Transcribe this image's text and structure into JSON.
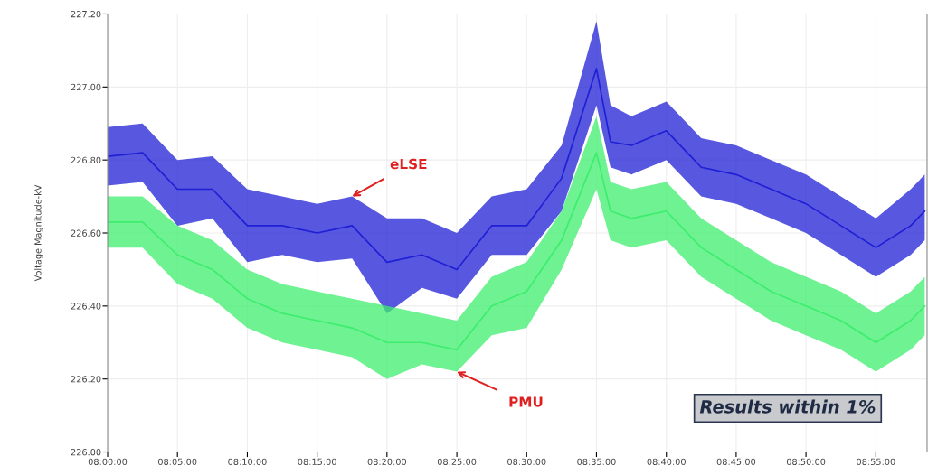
{
  "chart_data": {
    "type": "line",
    "ylabel": "Voltage Magnitude-kV",
    "x": [
      8.0,
      8.0417,
      8.0833,
      8.125,
      8.1667,
      8.2083,
      8.25,
      8.2917,
      8.3333,
      8.375,
      8.4167,
      8.4583,
      8.5,
      8.5417,
      8.5833,
      8.6,
      8.625,
      8.6667,
      8.7083,
      8.75,
      8.7917,
      8.8333,
      8.875,
      8.9167,
      8.9583,
      8.975
    ],
    "series": [
      {
        "color": "#1f1fd6",
        "values": [
          226.81,
          226.82,
          226.72,
          226.72,
          226.62,
          226.62,
          226.6,
          226.62,
          226.52,
          226.54,
          226.5,
          226.62,
          226.62,
          226.75,
          227.05,
          226.85,
          226.84,
          226.88,
          226.78,
          226.76,
          226.72,
          226.68,
          226.62,
          226.56,
          226.62,
          226.66
        ],
        "lower": [
          226.73,
          226.74,
          226.62,
          226.64,
          226.52,
          226.54,
          226.52,
          226.53,
          226.38,
          226.45,
          226.42,
          226.54,
          226.54,
          226.66,
          226.95,
          226.78,
          226.76,
          226.8,
          226.7,
          226.68,
          226.64,
          226.6,
          226.54,
          226.48,
          226.54,
          226.58
        ],
        "upper": [
          226.89,
          226.9,
          226.8,
          226.81,
          226.72,
          226.7,
          226.68,
          226.7,
          226.64,
          226.64,
          226.6,
          226.7,
          226.72,
          226.84,
          227.18,
          226.95,
          226.92,
          226.96,
          226.86,
          226.84,
          226.8,
          226.76,
          226.7,
          226.64,
          226.72,
          226.76
        ]
      },
      {
        "color": "#3ded6e",
        "values": [
          226.63,
          226.63,
          226.54,
          226.5,
          226.42,
          226.38,
          226.36,
          226.34,
          226.3,
          226.3,
          226.28,
          226.4,
          226.44,
          226.58,
          226.82,
          226.66,
          226.64,
          226.66,
          226.56,
          226.5,
          226.44,
          226.4,
          226.36,
          226.3,
          226.36,
          226.4
        ],
        "lower": [
          226.56,
          226.56,
          226.46,
          226.42,
          226.34,
          226.3,
          226.28,
          226.26,
          226.2,
          226.24,
          226.22,
          226.32,
          226.34,
          226.5,
          226.72,
          226.58,
          226.56,
          226.58,
          226.48,
          226.42,
          226.36,
          226.32,
          226.28,
          226.22,
          226.28,
          226.32
        ],
        "upper": [
          226.7,
          226.7,
          226.62,
          226.58,
          226.5,
          226.46,
          226.44,
          226.42,
          226.4,
          226.38,
          226.36,
          226.48,
          226.52,
          226.66,
          226.92,
          226.74,
          226.72,
          226.74,
          226.64,
          226.58,
          226.52,
          226.48,
          226.44,
          226.38,
          226.44,
          226.48
        ]
      }
    ],
    "xlim": [
      8.0,
      8.9778
    ],
    "ylim": [
      226.0,
      227.2
    ],
    "xticks": [
      {
        "value": 8.0,
        "label": "08:00:00"
      },
      {
        "value": 8.0833,
        "label": "08:05:00"
      },
      {
        "value": 8.1667,
        "label": "08:10:00"
      },
      {
        "value": 8.25,
        "label": "08:15:00"
      },
      {
        "value": 8.3333,
        "label": "08:20:00"
      },
      {
        "value": 8.4167,
        "label": "08:25:00"
      },
      {
        "value": 8.5,
        "label": "08:30:00"
      },
      {
        "value": 8.5833,
        "label": "08:35:00"
      },
      {
        "value": 8.6667,
        "label": "08:40:00"
      },
      {
        "value": 8.75,
        "label": "08:45:00"
      },
      {
        "value": 8.8333,
        "label": "08:50:00"
      },
      {
        "value": 8.9167,
        "label": "08:55:00"
      }
    ],
    "yticks": [
      {
        "value": 226.0,
        "label": "226.00"
      },
      {
        "value": 226.2,
        "label": "226.20"
      },
      {
        "value": 226.4,
        "label": "226.40"
      },
      {
        "value": 226.6,
        "label": "226.60"
      },
      {
        "value": 226.8,
        "label": "226.80"
      },
      {
        "value": 227.0,
        "label": "227.00"
      },
      {
        "value": 227.2,
        "label": "227.20"
      }
    ],
    "grid": true,
    "legend": false,
    "annotations": [
      {
        "text": "eLSE",
        "x": 8.2917,
        "y": 226.7
      },
      {
        "text": "PMU",
        "x": 8.4167,
        "y": 226.22
      },
      "Results within 1%"
    ]
  }
}
